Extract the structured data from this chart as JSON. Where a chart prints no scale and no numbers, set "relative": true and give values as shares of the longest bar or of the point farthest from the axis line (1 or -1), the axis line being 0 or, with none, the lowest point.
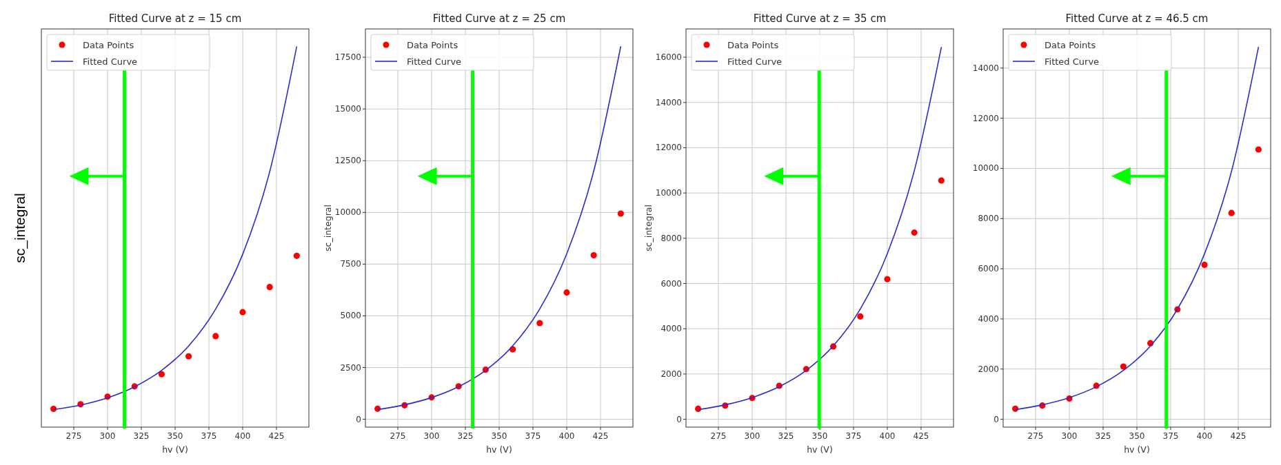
{
  "chart_data": [
    {
      "type": "scatter",
      "title": "Fitted Curve at z = 15 cm",
      "xlabel": "hv (V)",
      "ylabel": "sc_integral",
      "relative": true,
      "x": [
        260,
        280,
        300,
        320,
        340,
        360,
        380,
        400,
        420,
        440
      ],
      "xlim": [
        251,
        449
      ],
      "xticks": [
        275,
        300,
        325,
        350,
        375,
        400,
        425
      ],
      "grid": "x",
      "legend": "top left",
      "series": [
        {
          "name": "Data Points",
          "type": "scatter",
          "marker": "circle",
          "color": "#ff0000",
          "values": [
            0.048,
            0.06,
            0.08,
            0.107,
            0.139,
            0.186,
            0.239,
            0.302,
            0.368,
            0.45
          ]
        },
        {
          "name": "Fitted Curve",
          "type": "line",
          "color": "#2a2ad0",
          "x": [
            260,
            280,
            300,
            320,
            340,
            360,
            380,
            400,
            420,
            440
          ],
          "values": [
            0.046,
            0.058,
            0.077,
            0.106,
            0.149,
            0.213,
            0.31,
            0.454,
            0.671,
            1
          ]
        }
      ],
      "ref_lines": [
        {
          "axis": "x",
          "value": 312.5,
          "color": "#00ff00"
        }
      ]
    },
    {
      "type": "scatter",
      "title": "Fitted Curve at z = 25 cm",
      "xlabel": "hv (V)",
      "ylabel": "sc_integral",
      "x": [
        260,
        280,
        300,
        320,
        340,
        360,
        380,
        400,
        420,
        440
      ],
      "xlim": [
        251,
        449
      ],
      "xticks": [
        275,
        300,
        325,
        350,
        375,
        400,
        425
      ],
      "ylim": [
        -380,
        18870
      ],
      "yticks": [
        0,
        2500,
        5000,
        7500,
        10000,
        12500,
        15000,
        17500
      ],
      "grid": true,
      "legend": "top left",
      "series": [
        {
          "name": "Data Points",
          "type": "scatter",
          "marker": "circle",
          "color": "#ff0000",
          "values": [
            507,
            676,
            1056,
            1592,
            2394,
            3380,
            4648,
            6127,
            7930,
            9944
          ]
        },
        {
          "name": "Fitted Curve",
          "type": "line",
          "color": "#2a2ad0",
          "x": [
            260,
            280,
            300,
            320,
            340,
            360,
            380,
            400,
            420,
            440
          ],
          "values": [
            465,
            698,
            1048,
            1574,
            2364,
            3548,
            5330,
            7998,
            12000,
            18030
          ]
        }
      ],
      "ref_lines": [
        {
          "axis": "x",
          "value": 330.4,
          "color": "#00ff00"
        }
      ]
    },
    {
      "type": "scatter",
      "title": "Fitted Curve at z = 35 cm",
      "xlabel": "hv (V)",
      "ylabel": "sc_integral",
      "x": [
        260,
        280,
        300,
        320,
        340,
        360,
        380,
        400,
        420,
        440
      ],
      "xlim": [
        251,
        449
      ],
      "xticks": [
        275,
        300,
        325,
        350,
        375,
        400,
        425
      ],
      "ylim": [
        -347,
        17250
      ],
      "yticks": [
        0,
        2000,
        4000,
        6000,
        8000,
        10000,
        12000,
        14000,
        16000
      ],
      "grid": true,
      "legend": "top left",
      "series": [
        {
          "name": "Data Points",
          "type": "scatter",
          "marker": "circle",
          "color": "#ff0000",
          "values": [
            463,
            605,
            940,
            1480,
            2214,
            3218,
            4543,
            6190,
            8250,
            10553
          ]
        },
        {
          "name": "Fitted Curve",
          "type": "line",
          "color": "#2a2ad0",
          "x": [
            260,
            280,
            300,
            320,
            340,
            360,
            380,
            400,
            420,
            440
          ],
          "values": [
            425,
            638,
            958,
            1439,
            2161,
            3245,
            4873,
            7320,
            10990,
            16448
          ]
        }
      ],
      "ref_lines": [
        {
          "axis": "x",
          "value": 349.6,
          "color": "#00ff00"
        }
      ]
    },
    {
      "type": "scatter",
      "title": "Fitted Curve at z = 46.5 cm",
      "xlabel": "hv (V)",
      "x": [
        260,
        280,
        300,
        320,
        340,
        360,
        380,
        400,
        420,
        440
      ],
      "xlim": [
        251,
        449
      ],
      "xticks": [
        275,
        300,
        325,
        350,
        375,
        400,
        425
      ],
      "ylim": [
        -314,
        15560
      ],
      "yticks": [
        0,
        2000,
        4000,
        6000,
        8000,
        10000,
        12000,
        14000
      ],
      "grid": true,
      "legend": "top left",
      "series": [
        {
          "name": "Data Points",
          "type": "scatter",
          "marker": "circle",
          "color": "#ff0000",
          "values": [
            418,
            546,
            825,
            1336,
            2102,
            3031,
            4379,
            6156,
            8223,
            10755
          ]
        },
        {
          "name": "Fitted Curve",
          "type": "line",
          "color": "#2a2ad0",
          "x": [
            260,
            280,
            300,
            320,
            340,
            360,
            380,
            400,
            420,
            440
          ],
          "values": [
            383,
            575,
            863,
            1296,
            1946,
            2922,
            4389,
            6590,
            9881,
            14843
          ]
        }
      ],
      "ref_lines": [
        {
          "axis": "x",
          "value": 371.8,
          "color": "#00ff00"
        }
      ]
    }
  ]
}
